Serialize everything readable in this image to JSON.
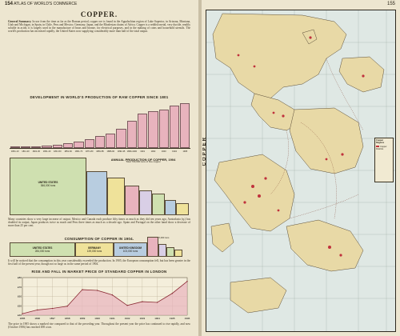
{
  "header": {
    "left_page_number": "154",
    "left_running_title": "ATLAS OF WORLD'S COMMERCE",
    "right_page_number": "155"
  },
  "article": {
    "title": "COPPER.",
    "intro_heading": "General Summary.",
    "intro_text": "In use from the time as far as the Roman period, copper ore is found in the Appalachian region of Lake Superior, in Arizona, Montana, Utah and Michigan, in Spain, in Chile, Peru and Mexico; Germany, Japan, and the Rhodesian chains of Africa. Copper is a reddish metal, very ductile, readily soluble in acids; it is largely used in the manufacture of brass and bronze, for electrical purposes, and in the making of coins and household utensils. The world's production has increased rapidly, the United States now supplying considerably more than half of the total output.",
    "para2": "Many countries show a very large increase of output. Mexico and Canada each produce fifty times as much as they did ten years ago, Australasia (q.) has doubled its output, Japan produces twice as much and Peru three times as much as a decade ago. Spain and Portugal on the other hand show a decrease of more than 25 per cent.",
    "para3": "It will be noticed that the consumption in this year considerably exceeded the production. In 1905, the European consumption fell, but has been greater in the first half of the present year, though not so large as in the same period of 1904.",
    "para4": "The price in 1905 shows a marked rise compared to that of the preceding year. Throughout the present year the price has continued to rise rapidly, and now (October 1906) has reached £98 a ton."
  },
  "development_chart": {
    "title": "DEVELOPMENT IN WORLD'S PRODUCTION OF RAW COPPER SINCE 1801",
    "bars": [
      {
        "label": "1801-10"
      },
      {
        "label": "1811-20"
      },
      {
        "label": "1821-30"
      },
      {
        "label": "1831-40"
      },
      {
        "label": "1841-50"
      },
      {
        "label": "1851-60"
      },
      {
        "label": "1861-70"
      },
      {
        "label": "1871-80"
      },
      {
        "label": "1881-85"
      },
      {
        "label": "1886-90"
      },
      {
        "label": "1891-95"
      },
      {
        "label": "1896-1900"
      },
      {
        "label": "1901"
      },
      {
        "label": "1902"
      },
      {
        "label": "1903"
      },
      {
        "label": "1904"
      },
      {
        "label": "1905"
      }
    ],
    "values": [
      1,
      1,
      1,
      2,
      3,
      4,
      6,
      8,
      11,
      13,
      17,
      24,
      31,
      33,
      34,
      38,
      40
    ]
  },
  "production_chart": {
    "title": "ANNUAL PRODUCTION OF COPPER, 1904",
    "subtitle": "Total 703,000 tons of fine copper",
    "blocks": [
      {
        "name": "UNITED STATES",
        "value": "366,000 tons"
      },
      {
        "name": "SPAIN & PORTUGAL"
      },
      {
        "name": "JAPAN"
      },
      {
        "name": "CHILE"
      },
      {
        "name": "AUSTRALASIA"
      },
      {
        "name": "MEXICO"
      },
      {
        "name": "GERMANY"
      },
      {
        "name": "CANADA"
      }
    ]
  },
  "consumption_chart": {
    "title": "CONSUMPTION OF COPPER IN 1904.",
    "subtitle": "Total 675,000 tons",
    "blocks": [
      {
        "name": "UNITED STATES",
        "value": "284,000 tons"
      },
      {
        "name": "GERMANY",
        "value": "139,000 tons"
      },
      {
        "name": "UNITED KINGDOM",
        "value": "103,000 tons"
      },
      {
        "name": "FRANCE"
      }
    ]
  },
  "price_chart": {
    "title": "RISE AND FALL IN MARKET PRICE OF STANDARD COPPER IN LONDON",
    "x_labels": [
      "1895",
      "1896",
      "1897",
      "1898",
      "1899",
      "1900",
      "1901",
      "1902",
      "1903",
      "1904",
      "1905",
      "1906"
    ],
    "y_labels": [
      "£80",
      "£70",
      "£60",
      "£50",
      "£40"
    ],
    "values": [
      42,
      47,
      49,
      52,
      74,
      73,
      67,
      53,
      58,
      57,
      69,
      85
    ],
    "ylim": [
      40,
      90
    ]
  },
  "map": {
    "title": "COPPER",
    "legend_heading": "Copper Regions",
    "legend_item": "Copper Districts"
  },
  "colors": {
    "bar_pink": "#e8b3bd",
    "block_green": "#cfe0b0",
    "block_blue": "#b8cde0",
    "block_yellow": "#efe29a",
    "map_land": "#e8d9a6",
    "map_sea": "#dfe8e4",
    "copper_red": "#c0323c"
  }
}
